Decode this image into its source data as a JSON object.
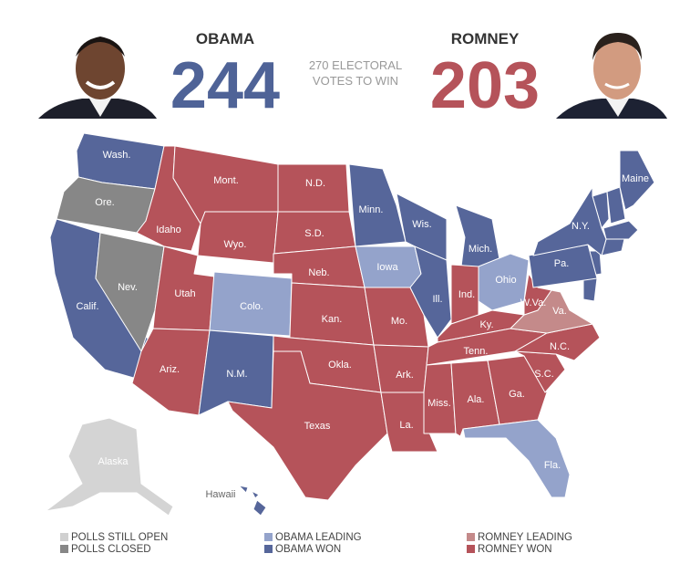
{
  "header": {
    "candidates": [
      {
        "name": "OBAMA",
        "votes": 244,
        "color": "#4f6397"
      },
      {
        "name": "ROMNEY",
        "votes": 203,
        "color": "#b5535a"
      }
    ],
    "center_text": [
      "270 ELECTORAL",
      "VOTES TO WIN"
    ]
  },
  "states": [
    {
      "label": "Wash.",
      "color": "#56669a"
    },
    {
      "label": "Ore.",
      "color": "#878787"
    },
    {
      "label": "Calif.",
      "color": "#56669a"
    },
    {
      "label": "Nev.",
      "color": "#878787"
    },
    {
      "label": "Idaho",
      "color": "#b5535a"
    },
    {
      "label": "Mont.",
      "color": "#b5535a"
    },
    {
      "label": "Wyo.",
      "color": "#b5535a"
    },
    {
      "label": "Utah",
      "color": "#b5535a"
    },
    {
      "label": "Colo.",
      "color": "#94a3cb"
    },
    {
      "label": "Ariz.",
      "color": "#b5535a"
    },
    {
      "label": "N.M.",
      "color": "#56669a"
    },
    {
      "label": "N.D.",
      "color": "#b5535a"
    },
    {
      "label": "S.D.",
      "color": "#b5535a"
    },
    {
      "label": "Neb.",
      "color": "#b5535a"
    },
    {
      "label": "Kan.",
      "color": "#b5535a"
    },
    {
      "label": "Okla.",
      "color": "#b5535a"
    },
    {
      "label": "Texas",
      "color": "#b5535a"
    },
    {
      "label": "Minn.",
      "color": "#56669a"
    },
    {
      "label": "Iowa",
      "color": "#94a3cb"
    },
    {
      "label": "Mo.",
      "color": "#b5535a"
    },
    {
      "label": "Ark.",
      "color": "#b5535a"
    },
    {
      "label": "La.",
      "color": "#b5535a"
    },
    {
      "label": "Wis.",
      "color": "#56669a"
    },
    {
      "label": "Ill.",
      "color": "#56669a"
    },
    {
      "label": "Mich.",
      "color": "#56669a"
    },
    {
      "label": "Ind.",
      "color": "#b5535a"
    },
    {
      "label": "Ohio",
      "color": "#94a3cb"
    },
    {
      "label": "Ky.",
      "color": "#b5535a"
    },
    {
      "label": "Tenn.",
      "color": "#b5535a"
    },
    {
      "label": "Miss.",
      "color": "#b5535a"
    },
    {
      "label": "Ala.",
      "color": "#b5535a"
    },
    {
      "label": "Ga.",
      "color": "#b5535a"
    },
    {
      "label": "Fla.",
      "color": "#94a3cb"
    },
    {
      "label": "S.C.",
      "color": "#b5535a"
    },
    {
      "label": "N.C.",
      "color": "#b5535a"
    },
    {
      "label": "Va.",
      "color": "#c48a8a"
    },
    {
      "label": "W.Va.",
      "color": "#b5535a"
    },
    {
      "label": "Pa.",
      "color": "#56669a"
    },
    {
      "label": "N.Y.",
      "color": "#56669a"
    },
    {
      "label": "Maine",
      "color": "#56669a"
    },
    {
      "label": "Alaska",
      "color": "#d4d4d4"
    },
    {
      "label": "Hawaii",
      "color": "#56669a"
    }
  ],
  "legend": [
    {
      "label": "POLLS STILL OPEN",
      "color": "#d0d0d0"
    },
    {
      "label": "POLLS CLOSED",
      "color": "#878787"
    },
    {
      "label": "OBAMA LEADING",
      "color": "#94a3cb"
    },
    {
      "label": "OBAMA WON",
      "color": "#56669a"
    },
    {
      "label": "ROMNEY LEADING",
      "color": "#c48a8a"
    },
    {
      "label": "ROMNEY WON",
      "color": "#b5535a"
    }
  ]
}
